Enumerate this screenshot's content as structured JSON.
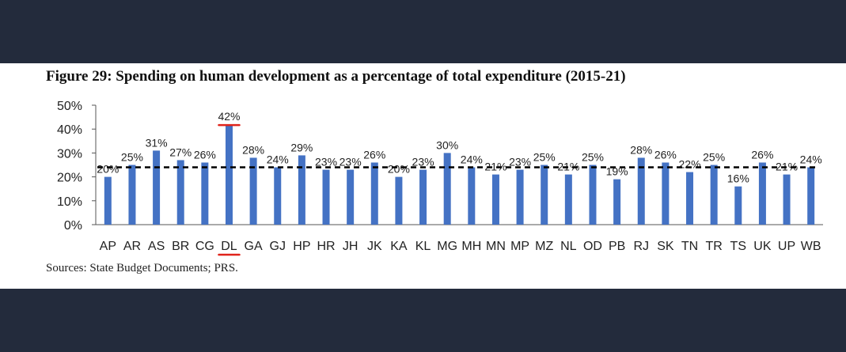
{
  "figure": {
    "title": "Figure 29: Spending on human development as a percentage of total expenditure (2015-21)",
    "sources": "Sources: State Budget Documents; PRS."
  },
  "colors": {
    "bar": "#4472c4",
    "average_line": "#000000",
    "highlight": "#e0241b",
    "frame": "#232b3c"
  },
  "chart_data": {
    "type": "bar",
    "title": "Figure 29: Spending on human development as a percentage of total expenditure (2015-21)",
    "xlabel": "",
    "ylabel": "",
    "ylim": [
      0,
      50
    ],
    "yticks": [
      "0%",
      "10%",
      "20%",
      "30%",
      "40%",
      "50%"
    ],
    "categories": [
      "AP",
      "AR",
      "AS",
      "BR",
      "CG",
      "DL",
      "GA",
      "GJ",
      "HP",
      "HR",
      "JH",
      "JK",
      "KA",
      "KL",
      "MG",
      "MH",
      "MN",
      "MP",
      "MZ",
      "NL",
      "OD",
      "PB",
      "RJ",
      "SK",
      "TN",
      "TR",
      "TS",
      "UK",
      "UP",
      "WB"
    ],
    "values": [
      20,
      25,
      31,
      27,
      26,
      42,
      28,
      24,
      29,
      23,
      23,
      26,
      20,
      23,
      30,
      24,
      21,
      23,
      25,
      21,
      25,
      19,
      28,
      26,
      22,
      25,
      16,
      26,
      21,
      24
    ],
    "labels": [
      "20%",
      "25%",
      "31%",
      "27%",
      "26%",
      "42%",
      "28%",
      "24%",
      "29%",
      "23%",
      "23%",
      "26%",
      "20%",
      "23%",
      "30%",
      "24%",
      "21%",
      "23%",
      "25%",
      "21%",
      "25%",
      "19%",
      "28%",
      "26%",
      "22%",
      "25%",
      "16%",
      "26%",
      "21%",
      "24%"
    ],
    "average_line": 24,
    "highlighted_category": "DL",
    "grid": false,
    "legend": "none"
  }
}
